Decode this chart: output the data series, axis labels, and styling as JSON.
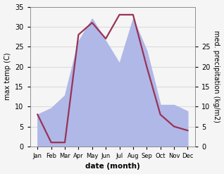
{
  "months": [
    "Jan",
    "Feb",
    "Mar",
    "Apr",
    "May",
    "Jun",
    "Jul",
    "Aug",
    "Sep",
    "Oct",
    "Nov",
    "Dec"
  ],
  "temperature": [
    8,
    1,
    1,
    28,
    31,
    27,
    33,
    33,
    20,
    8,
    5,
    4
  ],
  "precipitation": [
    10,
    12,
    16,
    33,
    40,
    33,
    26,
    40,
    30,
    13,
    13,
    11
  ],
  "temp_color": "#993355",
  "precip_color": "#b0b8e8",
  "temp_ylim": [
    0,
    35
  ],
  "precip_ylim": [
    0,
    43.75
  ],
  "temp_yticks": [
    0,
    5,
    10,
    15,
    20,
    25,
    30,
    35
  ],
  "precip_yticks": [
    0,
    5,
    10,
    15,
    20,
    25
  ],
  "precip_ytick_vals": [
    0,
    6.25,
    12.5,
    18.75,
    25,
    31.25
  ],
  "precip_yticklabels": [
    "0",
    "5",
    "10",
    "15",
    "20",
    "25"
  ],
  "ylabel_left": "max temp (C)",
  "ylabel_right": "med. precipitation (kg/m2)",
  "xlabel": "date (month)",
  "bg_color": "#f5f5f5",
  "line_width": 1.6
}
